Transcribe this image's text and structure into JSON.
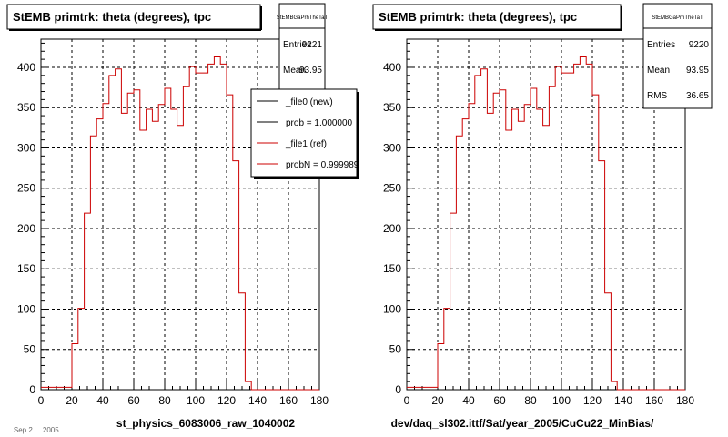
{
  "footer_text": "... Sep 2 ... 2005",
  "chart_data": [
    {
      "type": "histogram",
      "title": "StEMB primtrk: theta (degrees), tpc",
      "xlabel": "st_physics_6083006_raw_1040002",
      "ylabel": "",
      "xlim": [
        0,
        180
      ],
      "ylim": [
        0,
        435
      ],
      "x_ticks": [
        0,
        20,
        40,
        60,
        80,
        100,
        120,
        140,
        160,
        180
      ],
      "y_ticks": [
        0,
        50,
        100,
        150,
        200,
        250,
        300,
        350,
        400
      ],
      "grid": true,
      "bin_edges_start": 0,
      "bin_width": 4,
      "stats": {
        "name": "StEMBGaPrhTheTaT",
        "rows": [
          {
            "label": "Entries",
            "value": "9221"
          },
          {
            "label": "Mean",
            "value": "93.95"
          }
        ]
      },
      "legend": {
        "placement": "top-right",
        "entries": [
          {
            "label": "_file0 (new)",
            "color": "#000000"
          },
          {
            "label": "prob = 1.000000",
            "color": "#000000"
          },
          {
            "label": "_file1 (ref)",
            "color": "#cc0000"
          },
          {
            "label": "probN = 0.999989",
            "color": "#cc0000"
          }
        ]
      },
      "series": [
        {
          "color": "#cc0000",
          "values": [
            3,
            3,
            3,
            3,
            3,
            57,
            101,
            219,
            315,
            336,
            355,
            390,
            398,
            343,
            368,
            372,
            322,
            348,
            333,
            354,
            374,
            348,
            328,
            376,
            401,
            393,
            393,
            404,
            413,
            404,
            366,
            284,
            120,
            10,
            0,
            0,
            0,
            0,
            0,
            0,
            0,
            0,
            0,
            0,
            0
          ]
        }
      ]
    },
    {
      "type": "histogram",
      "title": "StEMB primtrk: theta (degrees), tpc",
      "xlabel": "dev/daq_sl302.ittf/Sat/year_2005/CuCu22_MinBias/",
      "ylabel": "",
      "xlim": [
        0,
        180
      ],
      "ylim": [
        0,
        435
      ],
      "x_ticks": [
        0,
        20,
        40,
        60,
        80,
        100,
        120,
        140,
        160,
        180
      ],
      "y_ticks": [
        0,
        50,
        100,
        150,
        200,
        250,
        300,
        350,
        400
      ],
      "grid": true,
      "bin_edges_start": 0,
      "bin_width": 4,
      "stats": {
        "name": "StEMBGaPrhTheTaT",
        "rows": [
          {
            "label": "Entries",
            "value": "9220"
          },
          {
            "label": "Mean",
            "value": "93.95"
          },
          {
            "label": "RMS",
            "value": "36.65"
          }
        ]
      },
      "legend": null,
      "series": [
        {
          "color": "#cc0000",
          "values": [
            3,
            3,
            3,
            3,
            3,
            57,
            101,
            219,
            315,
            336,
            355,
            390,
            398,
            343,
            368,
            372,
            322,
            348,
            333,
            354,
            374,
            348,
            328,
            376,
            401,
            393,
            393,
            404,
            413,
            404,
            366,
            284,
            120,
            10,
            0,
            0,
            0,
            0,
            0,
            0,
            0,
            0,
            0,
            0,
            0
          ]
        }
      ]
    }
  ]
}
